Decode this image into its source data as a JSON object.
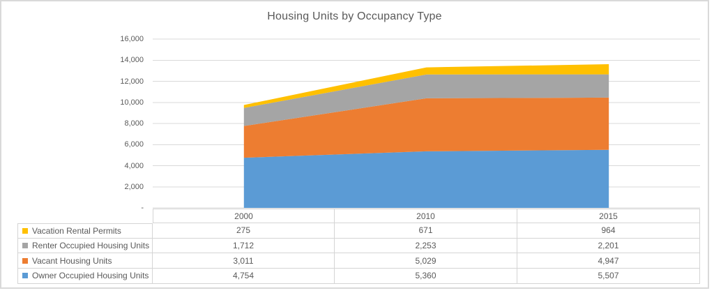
{
  "chart_data": {
    "type": "area",
    "stacked": true,
    "title": "Housing Units by Occupancy Type",
    "categories": [
      "2000",
      "2010",
      "2015"
    ],
    "series": [
      {
        "name": "Owner Occupied Housing Units",
        "color": "#5B9BD5",
        "values": [
          4754,
          5360,
          5507
        ]
      },
      {
        "name": "Vacant Housing Units",
        "color": "#ED7D31",
        "values": [
          3011,
          5029,
          4947
        ]
      },
      {
        "name": "Renter Occupied Housing Units",
        "color": "#A5A5A5",
        "values": [
          1712,
          2253,
          2201
        ]
      },
      {
        "name": "Vacation Rental Permits",
        "color": "#FFC000",
        "values": [
          275,
          671,
          964
        ]
      }
    ],
    "xlabel": "",
    "ylabel": "",
    "ylim": [
      0,
      16000
    ],
    "ytick_interval": 2000,
    "ytick_labels": [
      "16,000",
      "14,000",
      "12,000",
      "10,000",
      "8,000",
      "6,000",
      "4,000",
      "2,000",
      "-"
    ],
    "grid": true,
    "gridline_color": "#D9D9D9",
    "legend_position": "table-left"
  },
  "table": {
    "columns": [
      "",
      "2000",
      "2010",
      "2015"
    ],
    "rows": [
      {
        "label": "Vacation Rental Permits",
        "color": "#FFC000",
        "values": [
          "275",
          "671",
          "964"
        ]
      },
      {
        "label": "Renter Occupied Housing Units",
        "color": "#A5A5A5",
        "values": [
          "1,712",
          "2,253",
          "2,201"
        ]
      },
      {
        "label": "Vacant Housing Units",
        "color": "#ED7D31",
        "values": [
          "3,011",
          "5,029",
          "4,947"
        ]
      },
      {
        "label": "Owner Occupied Housing Units",
        "color": "#5B9BD5",
        "values": [
          "4,754",
          "5,360",
          "5,507"
        ]
      }
    ]
  }
}
